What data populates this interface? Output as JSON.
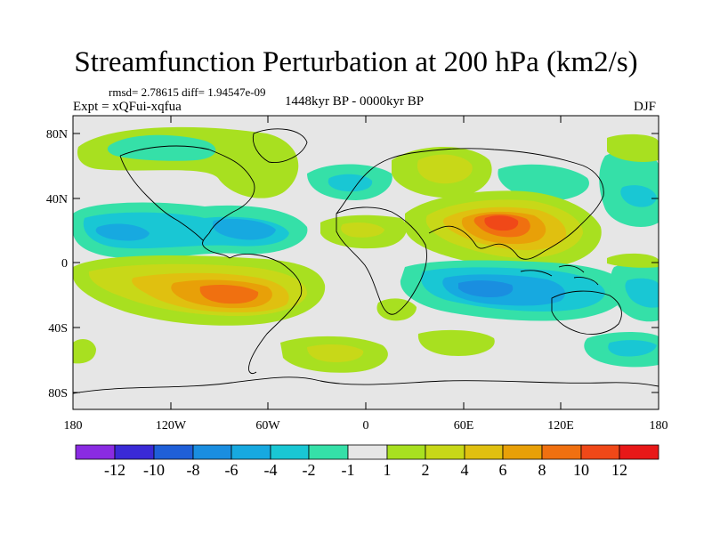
{
  "title": "Streamfunction Perturbation at 200 hPa (km2/s)",
  "stats": "rmsd= 2.78615 diff= 1.94547e-09",
  "experiment": "Expt = xQFui-xqfua",
  "period": "1448kyr BP - 0000kyr BP",
  "season": "DJF",
  "lat_ticks": [
    "80N",
    "40N",
    "0",
    "40S",
    "80S"
  ],
  "lon_ticks": [
    "180",
    "120W",
    "60W",
    "0",
    "60E",
    "120E",
    "180"
  ],
  "colorbar": {
    "labels": [
      "-12",
      "-10",
      "-8",
      "-6",
      "-4",
      "-2",
      "-1",
      "1",
      "2",
      "4",
      "6",
      "8",
      "10",
      "12"
    ],
    "colors": [
      "#8a2be2",
      "#3a2ad6",
      "#1f5fd8",
      "#1a8ee0",
      "#17a9e0",
      "#19c7d4",
      "#35e0a8",
      "#e6e6e6",
      "#a8e020",
      "#c8d818",
      "#e0c010",
      "#e8a008",
      "#f07010",
      "#f04818",
      "#e81818"
    ]
  },
  "colors": {
    "background": "#e6e6e6",
    "coast": "#000000"
  }
}
